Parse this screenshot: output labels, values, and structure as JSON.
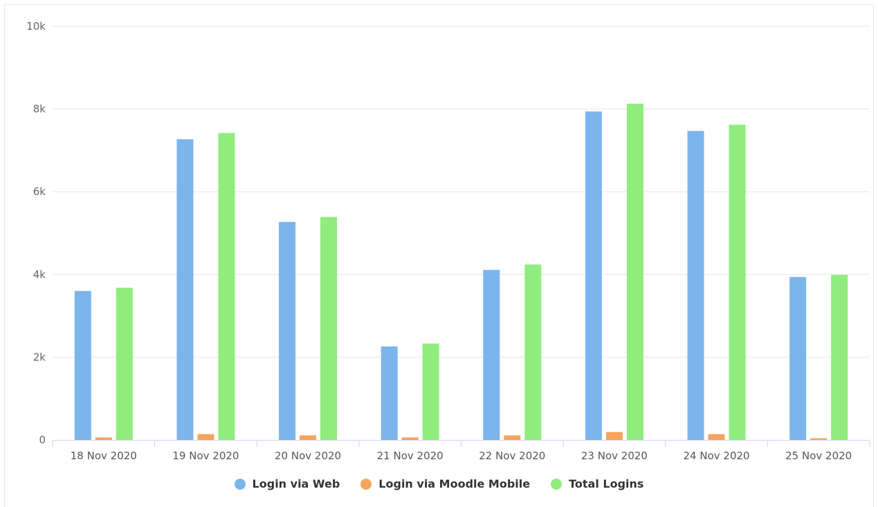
{
  "chart_data": {
    "type": "bar",
    "title": "",
    "xlabel": "",
    "ylabel": "",
    "ylim": [
      0,
      10000
    ],
    "y_ticks": [
      {
        "value": 0,
        "label": "0"
      },
      {
        "value": 2000,
        "label": "2k"
      },
      {
        "value": 4000,
        "label": "4k"
      },
      {
        "value": 6000,
        "label": "6k"
      },
      {
        "value": 8000,
        "label": "8k"
      },
      {
        "value": 10000,
        "label": "10k"
      }
    ],
    "categories": [
      "18 Nov 2020",
      "19 Nov 2020",
      "20 Nov 2020",
      "21 Nov 2020",
      "22 Nov 2020",
      "23 Nov 2020",
      "24 Nov 2020",
      "25 Nov 2020"
    ],
    "series": [
      {
        "name": "Login via Web",
        "color": "#7cb5ec",
        "values": [
          3600,
          7270,
          5270,
          2260,
          4110,
          7940,
          7470,
          3940
        ]
      },
      {
        "name": "Login via Moodle Mobile",
        "color": "#f7a35c",
        "values": [
          60,
          140,
          110,
          60,
          110,
          190,
          140,
          40
        ]
      },
      {
        "name": "Total Logins",
        "color": "#90ed7d",
        "values": [
          3680,
          7420,
          5390,
          2330,
          4240,
          8130,
          7620,
          3990
        ]
      }
    ],
    "grid": true,
    "legend_position": "bottom-center"
  }
}
